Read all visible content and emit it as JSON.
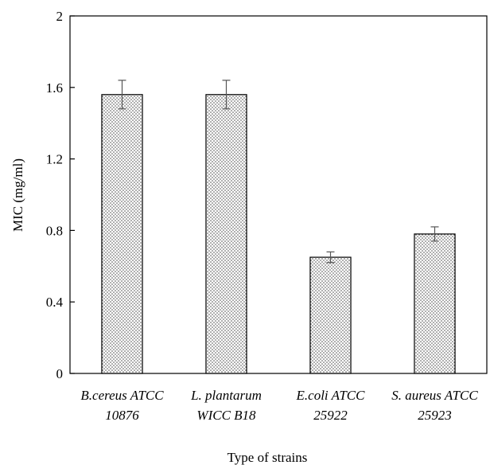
{
  "chart_data": {
    "type": "bar",
    "categories": [
      [
        "B.cereus ATCC",
        "10876"
      ],
      [
        "L. plantarum",
        "WICC B18"
      ],
      [
        "E.coli ATCC",
        "25922"
      ],
      [
        "S. aureus ATCC",
        "25923"
      ]
    ],
    "values": [
      1.56,
      1.56,
      0.65,
      0.78
    ],
    "errors": [
      0.08,
      0.08,
      0.03,
      0.04
    ],
    "xlabel": "Type of strains",
    "ylabel": "MIC (mg/ml)",
    "ylim": [
      0,
      2
    ],
    "yticks": [
      0,
      0.4,
      0.8,
      1.2,
      1.6,
      2
    ],
    "ytick_labels": [
      "0",
      "0.4",
      "0.8",
      "1.2",
      "1.6",
      "2"
    ],
    "grid": false,
    "bar_pattern": "dotted",
    "bar_color": "#000000"
  }
}
